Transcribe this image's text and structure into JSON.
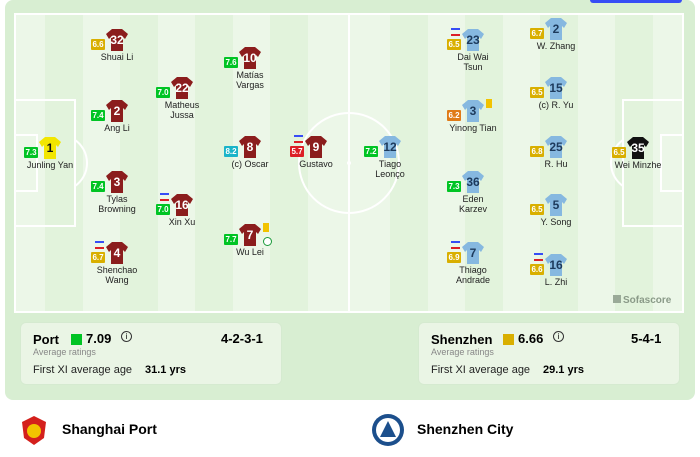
{
  "home": {
    "team": "Shanghai Port",
    "short": "Port",
    "rating": "7.09",
    "rating_label": "Average ratings",
    "formation": "4-2-3-1",
    "age_label": "First XI average age",
    "age": "31.1 yrs",
    "players": [
      {
        "number": 1,
        "name": "Junling Yan",
        "rating": "7.3"
      },
      {
        "number": 32,
        "name": "Shuai Li",
        "rating": "6.6"
      },
      {
        "number": 2,
        "name": "Ang Li",
        "rating": "7.4"
      },
      {
        "number": 3,
        "name": "Tylas Browning",
        "rating": "7.4"
      },
      {
        "number": 4,
        "name": "Shenchao Wang",
        "rating": "6.7"
      },
      {
        "number": 22,
        "name": "Matheus Jussa",
        "rating": "7.0"
      },
      {
        "number": 16,
        "name": "Xin Xu",
        "rating": "7.0"
      },
      {
        "number": 10,
        "name": "Matías Vargas",
        "rating": "7.6"
      },
      {
        "number": 8,
        "name": "(c) Oscar",
        "rating": "8.2"
      },
      {
        "number": 7,
        "name": "Wu Lei",
        "rating": "7.7"
      },
      {
        "number": 9,
        "name": "Gustavo",
        "rating": "5.7"
      }
    ]
  },
  "away": {
    "team": "Shenzhen City",
    "short": "Shenzhen",
    "rating": "6.66",
    "rating_label": "Average ratings",
    "formation": "5-4-1",
    "age_label": "First XI average age",
    "age": "29.1 yrs",
    "players": [
      {
        "number": 35,
        "name": "Wei Minzhe",
        "rating": "6.5"
      },
      {
        "number": 2,
        "name": "W. Zhang",
        "rating": "6.7"
      },
      {
        "number": 15,
        "name": "(c) R. Yu",
        "rating": "6.5"
      },
      {
        "number": 25,
        "name": "R. Hu",
        "rating": "6.8"
      },
      {
        "number": 5,
        "name": "Y. Song",
        "rating": "6.5"
      },
      {
        "number": 16,
        "name": "L. Zhi",
        "rating": "6.6"
      },
      {
        "number": 23,
        "name": "Dai Wai Tsun",
        "rating": "6.5"
      },
      {
        "number": 3,
        "name": "Yinong Tian",
        "rating": "6.2"
      },
      {
        "number": 36,
        "name": "Eden Karzev",
        "rating": "7.3"
      },
      {
        "number": 7,
        "name": "Thiago Andrade",
        "rating": "6.9"
      },
      {
        "number": 12,
        "name": "Tiago Leonço",
        "rating": "7.2"
      }
    ]
  },
  "watermark": "Sofascore"
}
